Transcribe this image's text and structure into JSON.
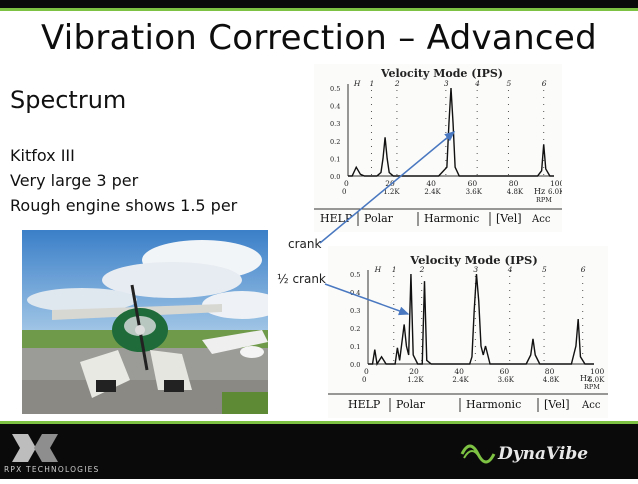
{
  "slide": {
    "title": "Vibration Correction – Advanced",
    "subtitle": "Spectrum",
    "lines": [
      "Kitfox III",
      "Very large 3 per",
      "Rough engine shows 1.5 per"
    ]
  },
  "annotations": {
    "crank": "crank",
    "half_crank": "½ crank"
  },
  "chart_top": {
    "title": "Velocity Mode (IPS)",
    "y_ticks": [
      "0.5",
      "0.4",
      "0.3",
      "0.2",
      "0.1",
      "0.0"
    ],
    "x_ticks": [
      "0",
      "20",
      "40",
      "60",
      "80",
      "100"
    ],
    "x_unit": "Hz",
    "rpm_ticks": [
      "0",
      "1.2K",
      "2.4K",
      "3.6K",
      "4.8K",
      "6.0K"
    ],
    "rpm_unit": "RPM",
    "harmonics": [
      "H",
      "1",
      "2",
      "3",
      "4",
      "5",
      "6"
    ],
    "menu": [
      "HELP",
      "Polar",
      "Harmonic",
      "[Vel]",
      "Acc"
    ]
  },
  "chart_bottom": {
    "title": "Velocity Mode (IPS)",
    "y_ticks": [
      "0.5",
      "0.4",
      "0.3",
      "0.2",
      "0.1",
      "0.0"
    ],
    "x_ticks": [
      "0",
      "20",
      "40",
      "60",
      "80",
      "100"
    ],
    "x_unit": "Hz",
    "rpm_ticks": [
      "0",
      "1.2K",
      "2.4K",
      "3.6K",
      "4.8K",
      "6.0K"
    ],
    "rpm_unit": "RPM",
    "harmonics": [
      "H",
      "1",
      "2",
      "3",
      "4",
      "5",
      "6"
    ],
    "menu": [
      "HELP",
      "Polar",
      "Harmonic",
      "[Vel]",
      "Acc"
    ]
  },
  "chart_data": [
    {
      "type": "line",
      "title": "Velocity Mode (IPS)",
      "xlabel": "Hz",
      "ylabel": "",
      "xlim": [
        0,
        100
      ],
      "ylim": [
        0,
        0.5
      ],
      "x": [
        0,
        2,
        4,
        6,
        8,
        10,
        12,
        14,
        16,
        17,
        18,
        19,
        20,
        22,
        30,
        35,
        44,
        48,
        49,
        50,
        51,
        52,
        54,
        60,
        70,
        80,
        92,
        94,
        95,
        96,
        98,
        100
      ],
      "y": [
        0,
        0,
        0.05,
        0.01,
        0,
        0,
        0,
        0,
        0.02,
        0.1,
        0.22,
        0.1,
        0.02,
        0,
        0,
        0,
        0,
        0.05,
        0.3,
        0.5,
        0.3,
        0.05,
        0,
        0,
        0,
        0,
        0,
        0.03,
        0.18,
        0.04,
        0,
        0
      ]
    },
    {
      "type": "line",
      "title": "Velocity Mode (IPS)",
      "xlabel": "Hz",
      "ylabel": "",
      "xlim": [
        0,
        100
      ],
      "ylim": [
        0,
        0.5
      ],
      "x": [
        0,
        2,
        3,
        4,
        6,
        8,
        10,
        12,
        13,
        14,
        16,
        17,
        18,
        19,
        20,
        22,
        24,
        25,
        26,
        28,
        40,
        45,
        46,
        47,
        48,
        49,
        50,
        51,
        52,
        54,
        60,
        70,
        72,
        73,
        74,
        76,
        80,
        90,
        92,
        93,
        94,
        96,
        100
      ],
      "y": [
        0,
        0,
        0.08,
        0,
        0.04,
        0,
        0,
        0,
        0.09,
        0.02,
        0.22,
        0.1,
        0.05,
        0.5,
        0.05,
        0,
        0,
        0.46,
        0.02,
        0,
        0,
        0,
        0.04,
        0.3,
        0.5,
        0.35,
        0.1,
        0.05,
        0.1,
        0,
        0,
        0,
        0.05,
        0.14,
        0.05,
        0,
        0,
        0,
        0.1,
        0.25,
        0.04,
        0,
        0
      ]
    }
  ],
  "footer": {
    "left_logo": "RPX TECHNOLOGIES",
    "right_logo": "DynaVibe"
  },
  "colors": {
    "accent": "#7dc242",
    "arrow": "#4a78c0",
    "footer": "#0a0a0a"
  }
}
